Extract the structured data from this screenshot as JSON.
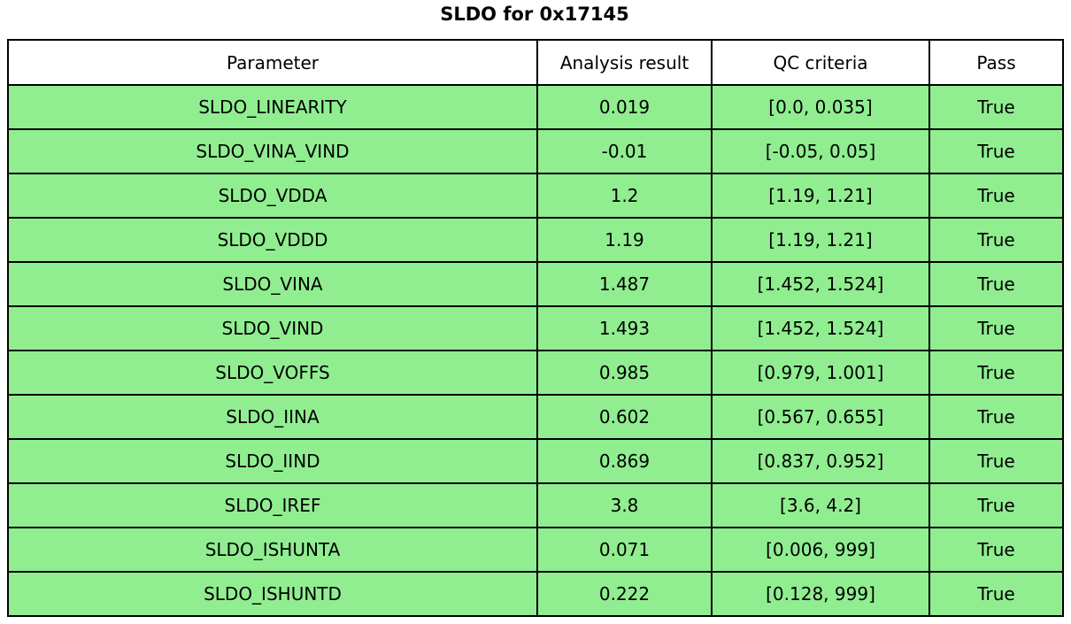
{
  "title": "SLDO for 0x17145",
  "chart_data": {
    "type": "table",
    "title": "SLDO for 0x17145",
    "columns": [
      "Parameter",
      "Analysis result",
      "QC criteria",
      "Pass"
    ],
    "rows": [
      [
        "SLDO_LINEARITY",
        "0.019",
        "[0.0, 0.035]",
        "True"
      ],
      [
        "SLDO_VINA_VIND",
        "-0.01",
        "[-0.05, 0.05]",
        "True"
      ],
      [
        "SLDO_VDDA",
        "1.2",
        "[1.19, 1.21]",
        "True"
      ],
      [
        "SLDO_VDDD",
        "1.19",
        "[1.19, 1.21]",
        "True"
      ],
      [
        "SLDO_VINA",
        "1.487",
        "[1.452, 1.524]",
        "True"
      ],
      [
        "SLDO_VIND",
        "1.493",
        "[1.452, 1.524]",
        "True"
      ],
      [
        "SLDO_VOFFS",
        "0.985",
        "[0.979, 1.001]",
        "True"
      ],
      [
        "SLDO_IINA",
        "0.602",
        "[0.567, 0.655]",
        "True"
      ],
      [
        "SLDO_IIND",
        "0.869",
        "[0.837, 0.952]",
        "True"
      ],
      [
        "SLDO_IREF",
        "3.8",
        "[3.6, 4.2]",
        "True"
      ],
      [
        "SLDO_ISHUNTA",
        "0.071",
        "[0.006, 999]",
        "True"
      ],
      [
        "SLDO_ISHUNTD",
        "0.222",
        "[0.128, 999]",
        "True"
      ]
    ],
    "layout": {
      "header_bg": "#ffffff",
      "pass_row_bg": "#90ee90",
      "border_color": "#000000",
      "text_color": "#000000",
      "legend": "off",
      "grid": "table-borders"
    }
  }
}
